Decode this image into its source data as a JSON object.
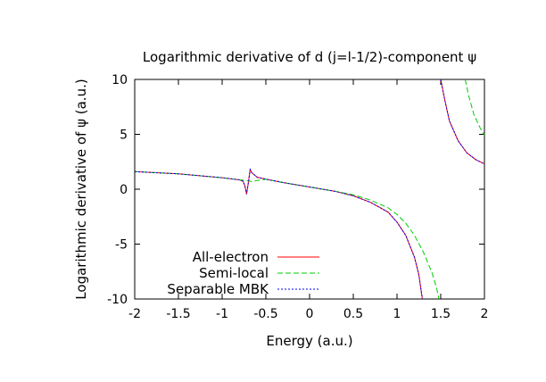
{
  "chart_data": {
    "type": "line",
    "title": "Logarithmic derivative of d (j=l-1/2)-component ψ",
    "xlabel": "Energy (a.u.)",
    "ylabel": "Logarithmic derivative of ψ (a.u.)",
    "xlim": [
      -2,
      2
    ],
    "ylim": [
      -10,
      10
    ],
    "x_ticks": [
      -2,
      -1.5,
      -1,
      -0.5,
      0,
      0.5,
      1,
      1.5,
      2
    ],
    "x_tick_labels": [
      "-2",
      "-1.5",
      "-1",
      "-0.5",
      "0",
      "0.5",
      "1",
      "1.5",
      "2"
    ],
    "y_ticks": [
      -10,
      -5,
      0,
      5,
      10
    ],
    "y_tick_labels": [
      "-10",
      "-5",
      "0",
      "5",
      "10"
    ],
    "grid": false,
    "legend_position": "bottom-left",
    "series": [
      {
        "name": "All-electron",
        "color": "#ff0000",
        "dash": "solid",
        "points": [
          [
            -2.0,
            1.6
          ],
          [
            -1.5,
            1.4
          ],
          [
            -1.0,
            1.05
          ],
          [
            -0.8,
            0.85
          ],
          [
            -0.76,
            0.72
          ],
          [
            -0.74,
            0.3
          ],
          [
            -0.72,
            -0.45
          ],
          [
            -0.7,
            0.6
          ],
          [
            -0.68,
            1.8
          ],
          [
            -0.66,
            1.5
          ],
          [
            -0.6,
            1.1
          ],
          [
            -0.5,
            0.92
          ],
          [
            -0.3,
            0.6
          ],
          [
            0.0,
            0.2
          ],
          [
            0.3,
            -0.2
          ],
          [
            0.5,
            -0.6
          ],
          [
            0.7,
            -1.2
          ],
          [
            0.9,
            -2.1
          ],
          [
            1.0,
            -3.0
          ],
          [
            1.1,
            -4.2
          ],
          [
            1.2,
            -6.2
          ],
          [
            1.25,
            -7.8
          ],
          [
            1.29,
            -10.0
          ],
          null,
          [
            1.5,
            10.0
          ],
          [
            1.55,
            8.0
          ],
          [
            1.6,
            6.2
          ],
          [
            1.7,
            4.4
          ],
          [
            1.8,
            3.3
          ],
          [
            1.9,
            2.7
          ],
          [
            2.0,
            2.3
          ]
        ]
      },
      {
        "name": "Semi-local",
        "color": "#00cc00",
        "dash": "6,3",
        "points": [
          [
            -2.0,
            1.6
          ],
          [
            -1.5,
            1.4
          ],
          [
            -1.0,
            1.05
          ],
          [
            -0.8,
            0.85
          ],
          [
            -0.7,
            0.75
          ],
          [
            -0.66,
            0.7
          ],
          [
            -0.6,
            0.8
          ],
          [
            -0.5,
            0.9
          ],
          [
            -0.3,
            0.6
          ],
          [
            0.0,
            0.2
          ],
          [
            0.3,
            -0.2
          ],
          [
            0.5,
            -0.5
          ],
          [
            0.7,
            -1.0
          ],
          [
            0.9,
            -1.7
          ],
          [
            1.0,
            -2.3
          ],
          [
            1.1,
            -3.1
          ],
          [
            1.2,
            -4.2
          ],
          [
            1.3,
            -5.7
          ],
          [
            1.4,
            -7.6
          ],
          [
            1.45,
            -8.9
          ],
          [
            1.48,
            -10.0
          ],
          null,
          [
            1.78,
            10.0
          ],
          [
            1.82,
            8.5
          ],
          [
            1.88,
            6.8
          ],
          [
            1.95,
            5.6
          ],
          [
            2.0,
            4.9
          ]
        ]
      },
      {
        "name": "Separable MBK",
        "color": "#0000ff",
        "dash": "2,2",
        "points": [
          [
            -2.0,
            1.6
          ],
          [
            -1.5,
            1.4
          ],
          [
            -1.0,
            1.05
          ],
          [
            -0.8,
            0.85
          ],
          [
            -0.76,
            0.72
          ],
          [
            -0.74,
            0.3
          ],
          [
            -0.72,
            -0.45
          ],
          [
            -0.7,
            0.6
          ],
          [
            -0.68,
            1.8
          ],
          [
            -0.66,
            1.5
          ],
          [
            -0.6,
            1.1
          ],
          [
            -0.5,
            0.92
          ],
          [
            -0.3,
            0.6
          ],
          [
            0.0,
            0.2
          ],
          [
            0.3,
            -0.2
          ],
          [
            0.5,
            -0.6
          ],
          [
            0.7,
            -1.2
          ],
          [
            0.9,
            -2.1
          ],
          [
            1.0,
            -3.0
          ],
          [
            1.1,
            -4.2
          ],
          [
            1.2,
            -6.2
          ],
          [
            1.25,
            -7.8
          ],
          [
            1.29,
            -10.0
          ],
          null,
          [
            1.5,
            10.0
          ],
          [
            1.55,
            8.0
          ],
          [
            1.6,
            6.2
          ],
          [
            1.7,
            4.4
          ],
          [
            1.8,
            3.3
          ],
          [
            1.9,
            2.7
          ],
          [
            2.0,
            2.3
          ]
        ]
      }
    ]
  }
}
